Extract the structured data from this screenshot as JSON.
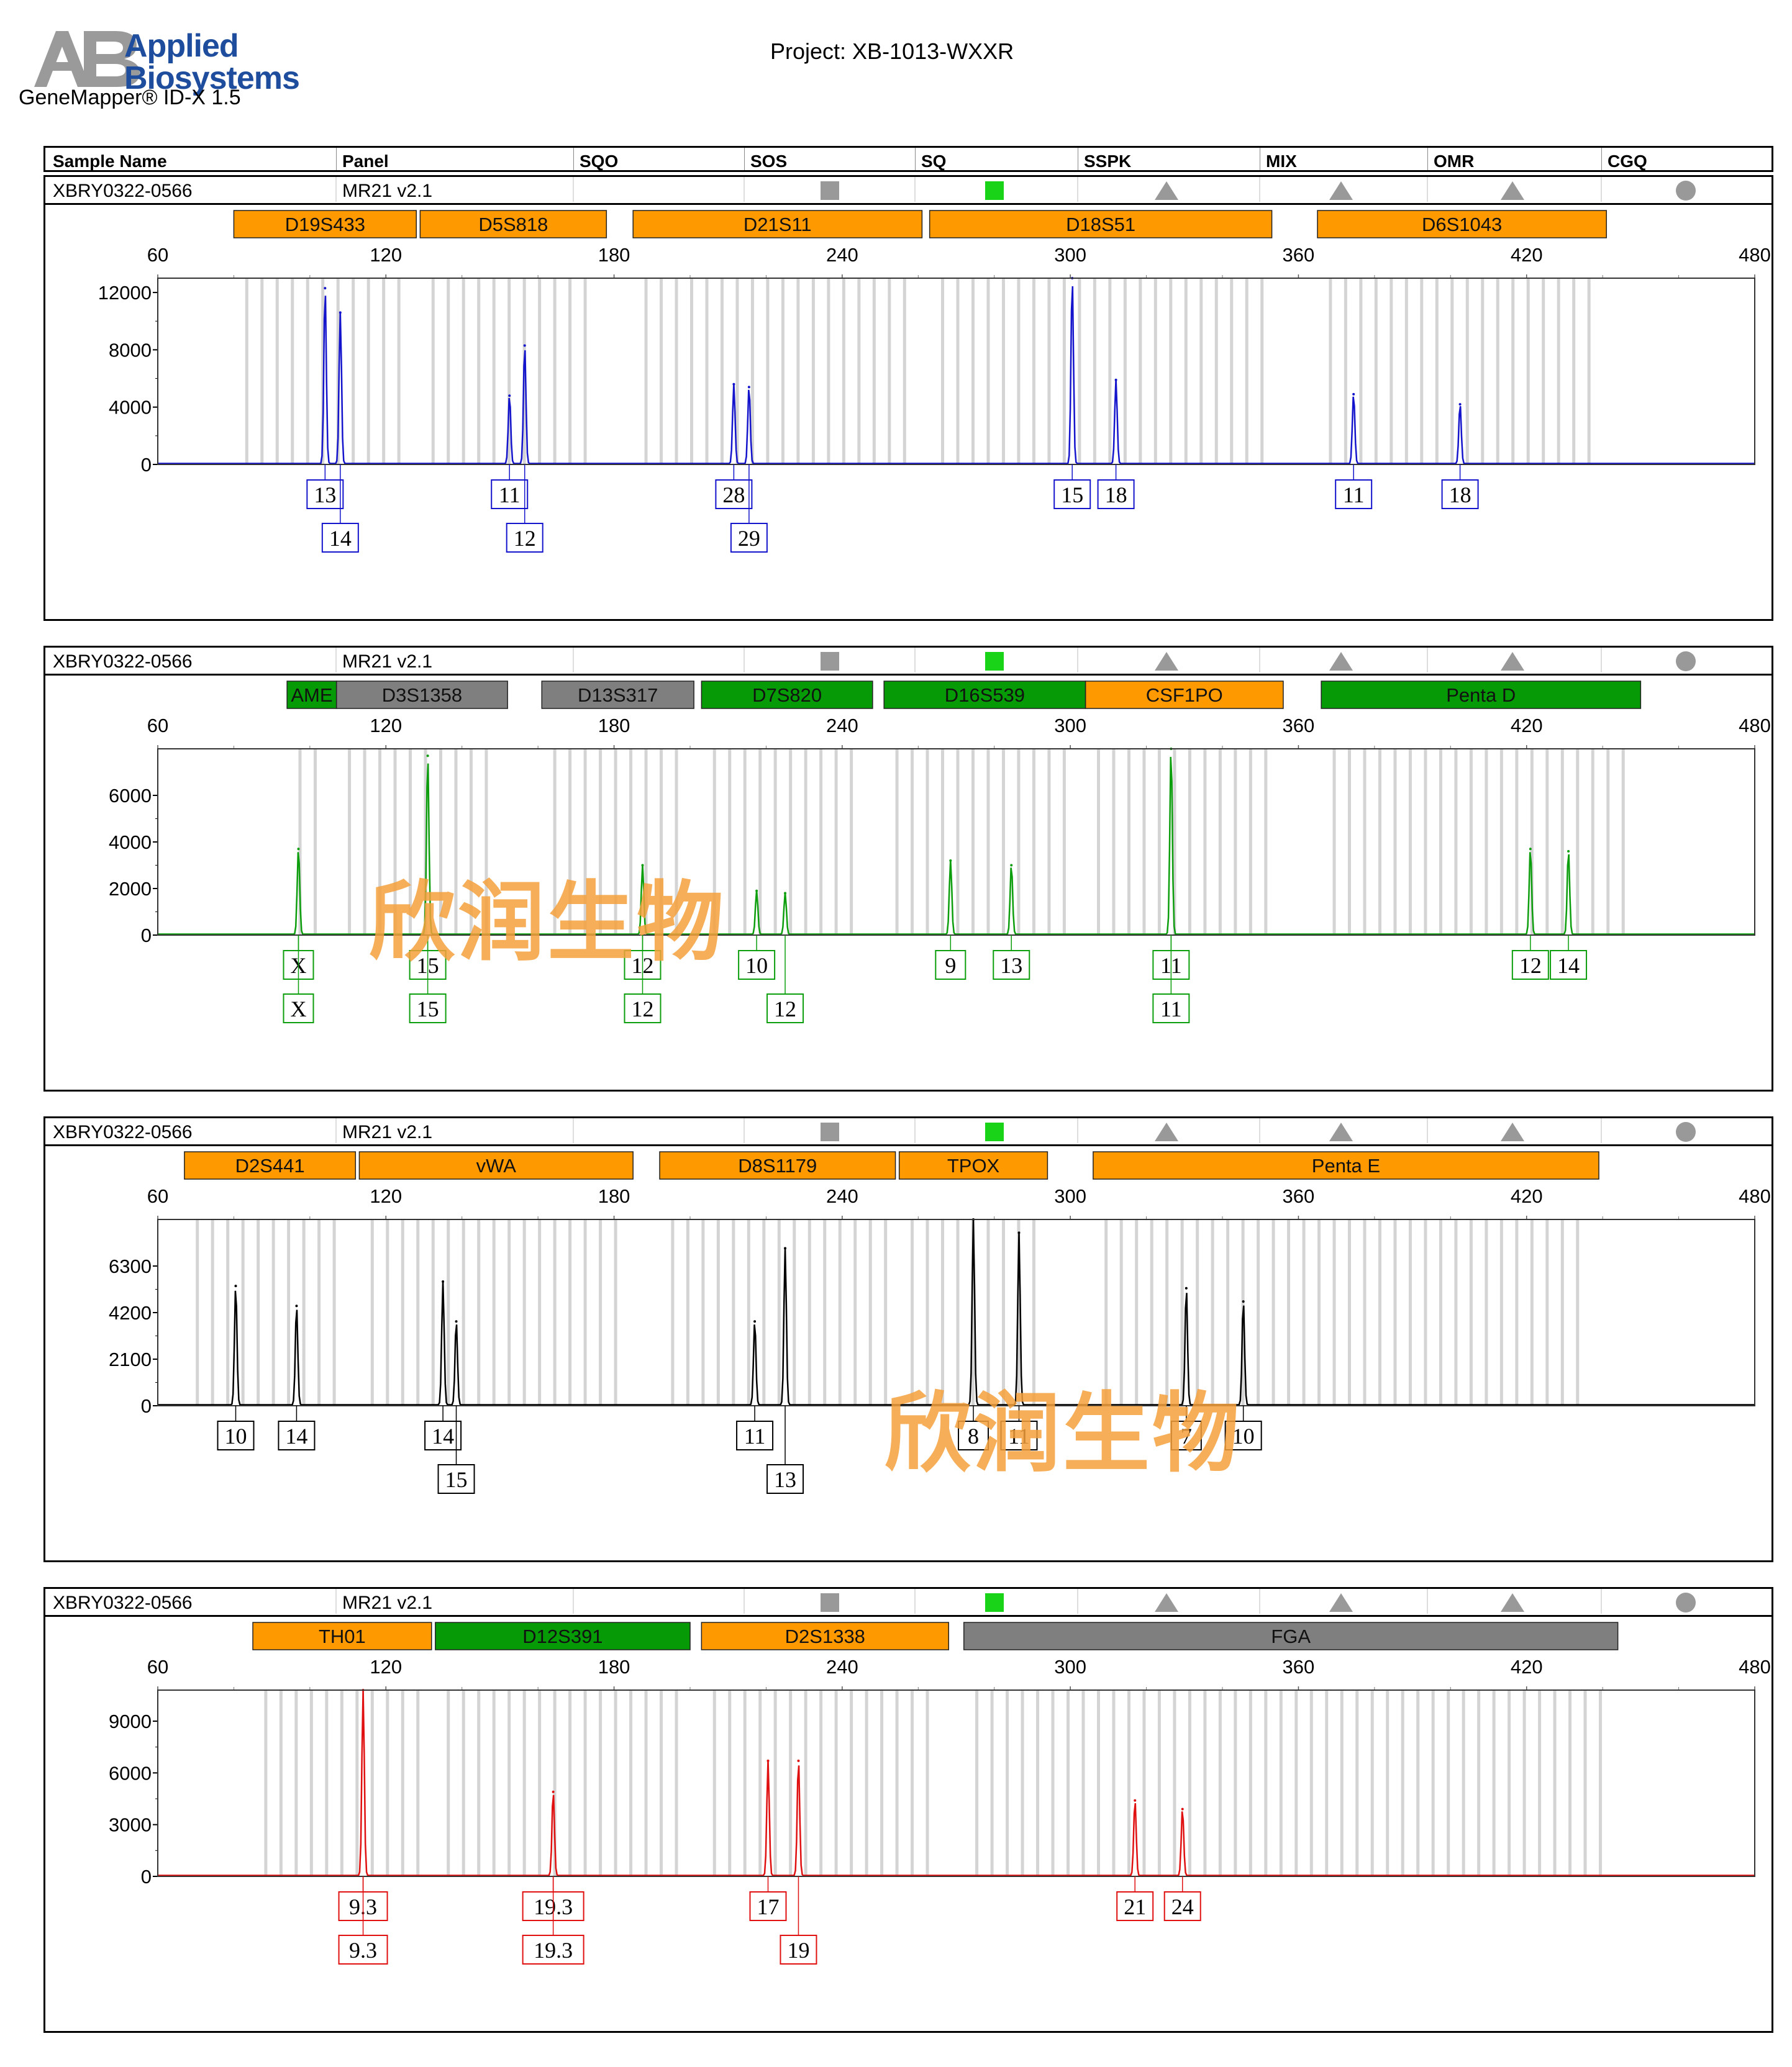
{
  "header": {
    "company": "Applied Biosystems",
    "app_version": "GeneMapper® ID-X  1.5",
    "project": "Project: XB-1013-WXXR"
  },
  "columns": [
    "Sample Name",
    "Panel",
    "SQO",
    "SOS",
    "SQ",
    "SSPK",
    "MIX",
    "OMR",
    "CGQ"
  ],
  "watermark": "欣润生物",
  "colors": {
    "orange": "#ff9900",
    "green": "#079a07",
    "gray": "#7f7f7f",
    "quality_green": "#19d319",
    "quality_gray": "#999999"
  },
  "chart_data": [
    {
      "type": "line",
      "sample": "XBRY0322-0566",
      "panel": "MR21  v2.1",
      "dye_color": "#1414cc",
      "xlim": [
        60,
        480
      ],
      "x_ticks": [
        60,
        120,
        180,
        240,
        300,
        360,
        420,
        480
      ],
      "ylim": [
        0,
        13000
      ],
      "y_ticks": [
        "0",
        "4000",
        "8000",
        "12000"
      ],
      "y_tick_values": [
        0,
        4000,
        8000,
        12000
      ],
      "markers": [
        {
          "name": "D19S433",
          "start": 80,
          "end": 128,
          "color": "orange"
        },
        {
          "name": "D5S818",
          "start": 129,
          "end": 178,
          "color": "orange"
        },
        {
          "name": "D21S11",
          "start": 185,
          "end": 261,
          "color": "orange"
        },
        {
          "name": "D18S51",
          "start": 263,
          "end": 353,
          "color": "orange"
        },
        {
          "name": "D6S1043",
          "start": 365,
          "end": 441,
          "color": "orange"
        }
      ],
      "peaks": [
        {
          "x": 104.0,
          "y": 12300,
          "allele": "13",
          "row": 0
        },
        {
          "x": 108.0,
          "y": 10600,
          "allele": "14",
          "row": 1
        },
        {
          "x": 152.5,
          "y": 4800,
          "allele": "11",
          "row": 0
        },
        {
          "x": 156.5,
          "y": 8300,
          "allele": "12",
          "row": 1
        },
        {
          "x": 211.5,
          "y": 5600,
          "allele": "28",
          "row": 0
        },
        {
          "x": 215.5,
          "y": 5400,
          "allele": "29",
          "row": 1
        },
        {
          "x": 300.5,
          "y": 13000,
          "allele": "15",
          "row": 0
        },
        {
          "x": 312.0,
          "y": 5900,
          "allele": "18",
          "row": 0
        },
        {
          "x": 374.5,
          "y": 4900,
          "allele": "11",
          "row": 0
        },
        {
          "x": 402.5,
          "y": 4200,
          "allele": "18",
          "row": 0
        }
      ]
    },
    {
      "type": "line",
      "sample": "XBRY0322-0566",
      "panel": "MR21  v2.1",
      "dye_color": "#0c9e0c",
      "xlim": [
        60,
        480
      ],
      "x_ticks": [
        60,
        120,
        180,
        240,
        300,
        360,
        420,
        480
      ],
      "ylim": [
        0,
        8000
      ],
      "y_ticks": [
        "0",
        "2000",
        "4000",
        "6000"
      ],
      "y_tick_values": [
        0,
        2000,
        4000,
        6000
      ],
      "markers": [
        {
          "name": "AME",
          "start": 94,
          "end": 107,
          "color": "green"
        },
        {
          "name": "D3S1358",
          "start": 107,
          "end": 152,
          "color": "gray"
        },
        {
          "name": "D13S317",
          "start": 161,
          "end": 201,
          "color": "gray"
        },
        {
          "name": "D7S820",
          "start": 203,
          "end": 248,
          "color": "green"
        },
        {
          "name": "D16S539",
          "start": 251,
          "end": 304,
          "color": "green"
        },
        {
          "name": "CSF1PO",
          "start": 304,
          "end": 356,
          "color": "orange"
        },
        {
          "name": "Penta D",
          "start": 366,
          "end": 450,
          "color": "green"
        }
      ],
      "peaks": [
        {
          "x": 97.0,
          "y": 3700,
          "allele": "X",
          "row": 0,
          "allele2": "X"
        },
        {
          "x": 131.0,
          "y": 7700,
          "allele": "15",
          "row": 0,
          "allele2": "15"
        },
        {
          "x": 187.5,
          "y": 3000,
          "allele": "12",
          "row": 0,
          "allele2": "12"
        },
        {
          "x": 217.5,
          "y": 1900,
          "allele": "10",
          "row": 0
        },
        {
          "x": 225.0,
          "y": 1800,
          "allele": "12",
          "row": 1
        },
        {
          "x": 268.5,
          "y": 3200,
          "allele": "9",
          "row": 0
        },
        {
          "x": 284.5,
          "y": 3000,
          "allele": "13",
          "row": 0
        },
        {
          "x": 326.5,
          "y": 8000,
          "allele": "11",
          "row": 0,
          "allele2": "11"
        },
        {
          "x": 421.0,
          "y": 3700,
          "allele": "12",
          "row": 0
        },
        {
          "x": 431.0,
          "y": 3600,
          "allele": "14",
          "row": 0
        }
      ]
    },
    {
      "type": "line",
      "sample": "XBRY0322-0566",
      "panel": "MR21  v2.1",
      "dye_color": "#000000",
      "xlim": [
        60,
        480
      ],
      "x_ticks": [
        60,
        120,
        180,
        240,
        300,
        360,
        420,
        480
      ],
      "ylim": [
        0,
        8400
      ],
      "y_ticks": [
        "0",
        "2100",
        "4200",
        "6300"
      ],
      "y_tick_values": [
        0,
        2100,
        4200,
        6300
      ],
      "markers": [
        {
          "name": "D2S441",
          "start": 67,
          "end": 112,
          "color": "orange"
        },
        {
          "name": "vWA",
          "start": 113,
          "end": 185,
          "color": "orange"
        },
        {
          "name": "D8S1179",
          "start": 192,
          "end": 254,
          "color": "orange"
        },
        {
          "name": "TPOX",
          "start": 255,
          "end": 294,
          "color": "orange"
        },
        {
          "name": "Penta E",
          "start": 306,
          "end": 439,
          "color": "orange"
        }
      ],
      "peaks": [
        {
          "x": 80.5,
          "y": 5400,
          "allele": "10",
          "row": 0
        },
        {
          "x": 96.5,
          "y": 4500,
          "allele": "14",
          "row": 0
        },
        {
          "x": 135.0,
          "y": 5600,
          "allele": "14",
          "row": 0
        },
        {
          "x": 138.5,
          "y": 3800,
          "allele": "15",
          "row": 1
        },
        {
          "x": 217.0,
          "y": 3800,
          "allele": "11",
          "row": 0
        },
        {
          "x": 225.0,
          "y": 7100,
          "allele": "13",
          "row": 1
        },
        {
          "x": 274.5,
          "y": 8400,
          "allele": "8",
          "row": 0
        },
        {
          "x": 286.5,
          "y": 7800,
          "allele": "11",
          "row": 0
        },
        {
          "x": 330.5,
          "y": 5300,
          "allele": "7",
          "row": 0
        },
        {
          "x": 345.5,
          "y": 4700,
          "allele": "10",
          "row": 0
        }
      ]
    },
    {
      "type": "line",
      "sample": "XBRY0322-0566",
      "panel": "MR21  v2.1",
      "dye_color": "#e01010",
      "xlim": [
        60,
        480
      ],
      "x_ticks": [
        60,
        120,
        180,
        240,
        300,
        360,
        420,
        480
      ],
      "ylim": [
        0,
        10800
      ],
      "y_ticks": [
        "0",
        "3000",
        "6000",
        "9000"
      ],
      "y_tick_values": [
        0,
        3000,
        6000,
        9000
      ],
      "markers": [
        {
          "name": "TH01",
          "start": 85,
          "end": 132,
          "color": "orange"
        },
        {
          "name": "D12S391",
          "start": 133,
          "end": 200,
          "color": "green"
        },
        {
          "name": "D2S1338",
          "start": 203,
          "end": 268,
          "color": "orange"
        },
        {
          "name": "FGA",
          "start": 272,
          "end": 444,
          "color": "gray"
        }
      ],
      "peaks": [
        {
          "x": 114.0,
          "y": 10800,
          "allele": "9.3",
          "row": 0,
          "allele2": "9.3"
        },
        {
          "x": 164.0,
          "y": 4900,
          "allele": "19.3",
          "row": 0,
          "allele2": "19.3"
        },
        {
          "x": 220.5,
          "y": 6700,
          "allele": "17",
          "row": 0
        },
        {
          "x": 228.5,
          "y": 6700,
          "allele": "19",
          "row": 1
        },
        {
          "x": 317.0,
          "y": 4400,
          "allele": "21",
          "row": 0
        },
        {
          "x": 329.5,
          "y": 3900,
          "allele": "24",
          "row": 0
        }
      ]
    }
  ]
}
